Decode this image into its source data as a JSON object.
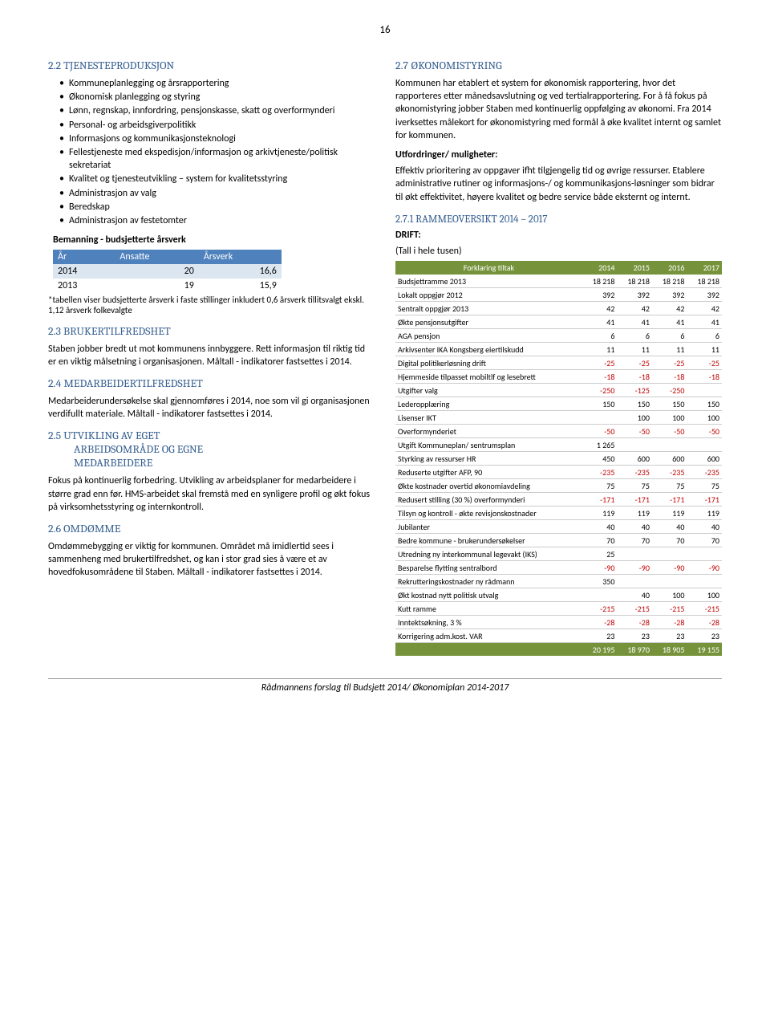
{
  "page_number": "16",
  "left": {
    "s22": {
      "title": "2.2   TJENESTEPRODUKSJON",
      "bullets": [
        "Kommuneplanlegging og årsrapportering",
        "Økonomisk planlegging og styring",
        "Lønn, regnskap, innfordring, pensjonskasse, skatt og overformynderi",
        "Personal- og arbeidsgiverpolitikk",
        "Informasjons og kommunikasjonsteknologi",
        "Fellestjeneste med ekspedisjon/informasjon og arkivtjeneste/politisk sekretariat",
        "Kvalitet og tjenesteutvikling – system for kvalitetsstyring",
        "Administrasjon av valg",
        "Beredskap",
        "Administrasjon av festetomter"
      ]
    },
    "bem": {
      "caption": "Bemanning - budsjetterte årsverk",
      "headers": [
        "År",
        "Ansatte",
        "Årsverk"
      ],
      "rows": [
        [
          "2014",
          "20",
          "16,6"
        ],
        [
          "2013",
          "19",
          "15,9"
        ]
      ],
      "footnote": "*tabellen viser budsjetterte årsverk i faste stillinger inkludert 0,6 årsverk tillitsvalgt ekskl. 1,12 årsverk folkevalgte"
    },
    "s23": {
      "title": "2.3   BRUKERTILFREDSHET",
      "body": "Staben jobber bredt ut mot kommunens innbyggere. Rett informasjon til riktig tid er en viktig målsetning i organisasjonen. Måltall - indikatorer fastsettes i 2014."
    },
    "s24": {
      "title": "2.4   MEDARBEIDERTILFREDSHET",
      "body": "Medarbeiderundersøkelse skal gjennomføres i 2014, noe som vil gi organisasjonen verdifullt materiale. Måltall - indikatorer fastsettes i 2014."
    },
    "s25": {
      "title1": "2.5   UTVIKLING AV EGET",
      "title2": "ARBEIDSOMRÅDE OG EGNE",
      "title3": "MEDARBEIDERE",
      "body": "Fokus på kontinuerlig forbedring. Utvikling av arbeidsplaner for medarbeidere i større grad enn før. HMS-arbeidet skal fremstå med en synligere profil og økt fokus på virksomhetsstyring og internkontroll."
    },
    "s26": {
      "title": "2.6   OMDØMME",
      "body": "Omdømmebygging er viktig for kommunen. Området må imidlertid sees i sammenheng med brukertilfredshet, og kan i stor grad sies å være et av hovedfokusområdene til Staben. Måltall - indikatorer fastsettes i 2014."
    }
  },
  "right": {
    "s27": {
      "title": "2.7   ØKONOMISTYRING",
      "p1": "Kommunen har etablert et system for økonomisk rapportering, hvor det rapporteres etter månedsavslutning og ved tertialrapportering. For å få fokus på økonomistyring jobber Staben med kontinuerlig oppfølging av økonomi. Fra 2014 iverksettes målekort for økonomistyring med formål å øke kvalitet internt og samlet for kommunen.",
      "utf_title": "Utfordringer/ muligheter:",
      "p2": "Effektiv prioritering av oppgaver ifht tilgjengelig tid og øvrige ressurser. Etablere administrative rutiner og informasjons-/ og kommunikasjons-løsninger som bidrar til økt effektivitet, høyere kvalitet og bedre service både eksternt og internt."
    },
    "s271": {
      "title": "2.7.1    RAMMEOVERSIKT 2014 – 2017",
      "drift_label": "DRIFT:",
      "tall_label": "(Tall i hele tusen)"
    },
    "drift": {
      "headers": [
        "Forklaring tiltak",
        "2014",
        "2015",
        "2016",
        "2017"
      ],
      "rows": [
        {
          "c": [
            "Budsjettramme 2013",
            "18 218",
            "18 218",
            "18 218",
            "18 218"
          ]
        },
        {
          "c": [
            "Lokalt oppgjør 2012",
            "392",
            "392",
            "392",
            "392"
          ]
        },
        {
          "c": [
            "Sentralt oppgjør 2013",
            "42",
            "42",
            "42",
            "42"
          ]
        },
        {
          "c": [
            "Økte pensjonsutgifter",
            "41",
            "41",
            "41",
            "41"
          ]
        },
        {
          "c": [
            "AGA pensjon",
            "6",
            "6",
            "6",
            "6"
          ]
        },
        {
          "c": [
            "Arkivsenter IKA Kongsberg eiertilskudd",
            "11",
            "11",
            "11",
            "11"
          ]
        },
        {
          "c": [
            "Digital politikerløsning drift",
            "-25",
            "-25",
            "-25",
            "-25"
          ],
          "neg": [
            1,
            2,
            3,
            4
          ]
        },
        {
          "c": [
            "Hjemmeside tilpasset mobiltlf og lesebrett",
            "-18",
            "-18",
            "-18",
            "-18"
          ],
          "neg": [
            1,
            2,
            3,
            4
          ]
        },
        {
          "c": [
            "Utgifter valg",
            "-250",
            "-125",
            "-250",
            ""
          ],
          "neg": [
            1,
            2,
            3
          ]
        },
        {
          "c": [
            "Lederopplæring",
            "150",
            "150",
            "150",
            "150"
          ]
        },
        {
          "c": [
            "Lisenser IKT",
            "",
            "100",
            "100",
            "100"
          ]
        },
        {
          "c": [
            "Overformynderiet",
            "-50",
            "-50",
            "-50",
            "-50"
          ],
          "neg": [
            1,
            2,
            3,
            4
          ]
        },
        {
          "c": [
            "Utgift Kommuneplan/ sentrumsplan",
            "1 265",
            "",
            "",
            ""
          ]
        },
        {
          "c": [
            "Styrking av ressurser HR",
            "450",
            "600",
            "600",
            "600"
          ]
        },
        {
          "c": [
            "Reduserte utgifter AFP, 90",
            "-235",
            "-235",
            "-235",
            "-235"
          ],
          "neg": [
            1,
            2,
            3,
            4
          ]
        },
        {
          "c": [
            "Økte kostnader overtid økonomiavdeling",
            "75",
            "75",
            "75",
            "75"
          ]
        },
        {
          "c": [
            "Redusert stilling (30 %) overformynderi",
            "-171",
            "-171",
            "-171",
            "-171"
          ],
          "neg": [
            1,
            2,
            3,
            4
          ]
        },
        {
          "c": [
            "Tilsyn og kontroll - økte revisjonskostnader",
            "119",
            "119",
            "119",
            "119"
          ]
        },
        {
          "c": [
            "Jubilanter",
            "40",
            "40",
            "40",
            "40"
          ]
        },
        {
          "c": [
            "Bedre kommune - brukerundersøkelser",
            "70",
            "70",
            "70",
            "70"
          ]
        },
        {
          "c": [
            "Utredning ny interkommunal legevakt (IKS)",
            "25",
            "",
            "",
            ""
          ]
        },
        {
          "c": [
            "Besparelse flytting sentralbord",
            "-90",
            "-90",
            "-90",
            "-90"
          ],
          "neg": [
            1,
            2,
            3,
            4
          ]
        },
        {
          "c": [
            "Rekrutteringskostnader ny rådmann",
            "350",
            "",
            "",
            ""
          ]
        },
        {
          "c": [
            "Økt kostnad nytt politisk utvalg",
            "",
            "40",
            "100",
            "100"
          ]
        },
        {
          "c": [
            "Kutt ramme",
            "-215",
            "-215",
            "-215",
            "-215"
          ],
          "neg": [
            1,
            2,
            3,
            4
          ]
        },
        {
          "c": [
            "Inntektsøkning, 3 %",
            "-28",
            "-28",
            "-28",
            "-28"
          ],
          "neg": [
            1,
            2,
            3,
            4
          ]
        },
        {
          "c": [
            "Korrigering adm.kost. VAR",
            "23",
            "23",
            "23",
            "23"
          ]
        }
      ],
      "total": [
        "",
        "20 195",
        "18 970",
        "18 905",
        "19 155"
      ]
    }
  },
  "footer": "Rådmannens forslag til Budsjett 2014/ Økonomiplan 2014-2017"
}
